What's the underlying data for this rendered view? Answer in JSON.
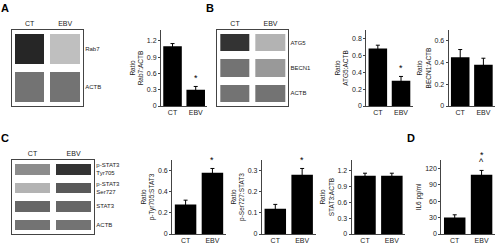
{
  "chart_data": [
    {
      "type": "heatmap",
      "title": "A",
      "x": [
        "CT",
        "EBV"
      ],
      "y": [
        "Rab7",
        "ACTB"
      ],
      "cells": [
        [
          0.85,
          0.25
        ],
        [
          0.55,
          0.55
        ]
      ],
      "zlim": [
        0,
        1
      ],
      "grid": false
    },
    {
      "type": "bar",
      "categories": [
        "CT",
        "EBV"
      ],
      "values": [
        1.1,
        0.3
      ],
      "errors": [
        0.05,
        0.06
      ],
      "ylabel": "Ratio\nRab7:ACTB",
      "ylim": [
        0,
        1.4
      ],
      "yticks": [
        0,
        0.3,
        0.6,
        0.9,
        1.2
      ],
      "color": "#000000",
      "grid": false,
      "annotations": [
        {
          "text": "*",
          "category": "EBV"
        }
      ]
    },
    {
      "type": "heatmap",
      "title": "B",
      "x": [
        "CT",
        "EBV"
      ],
      "y": [
        "ATG5",
        "BECN1",
        "ACTB"
      ],
      "cells": [
        [
          0.8,
          0.3
        ],
        [
          0.55,
          0.4
        ],
        [
          0.55,
          0.55
        ]
      ],
      "zlim": [
        0,
        1
      ],
      "grid": false
    },
    {
      "type": "bar",
      "categories": [
        "CT",
        "EBV"
      ],
      "values": [
        0.68,
        0.3
      ],
      "errors": [
        0.04,
        0.05
      ],
      "ylabel": "Ratio\nATG5:ACTB",
      "ylim": [
        0,
        0.9
      ],
      "yticks": [
        0,
        0.2,
        0.4,
        0.6,
        0.8
      ],
      "color": "#000000",
      "grid": false,
      "annotations": [
        {
          "text": "*",
          "category": "EBV"
        }
      ]
    },
    {
      "type": "bar",
      "categories": [
        "CT",
        "EBV"
      ],
      "values": [
        0.45,
        0.38
      ],
      "errors": [
        0.07,
        0.06
      ],
      "ylabel": "Ratio\nBECN1:ACTB",
      "ylim": [
        0,
        0.7
      ],
      "yticks": [
        0,
        0.2,
        0.4,
        0.6
      ],
      "color": "#000000",
      "grid": false
    },
    {
      "type": "heatmap",
      "title": "C",
      "x": [
        "CT",
        "EBV"
      ],
      "y": [
        "p-STAT3\nTyr705",
        "p-STAT3\nSer727",
        "STAT3",
        "ACTB"
      ],
      "cells": [
        [
          0.45,
          0.8
        ],
        [
          0.3,
          0.65
        ],
        [
          0.6,
          0.6
        ],
        [
          0.55,
          0.55
        ]
      ],
      "zlim": [
        0,
        1
      ],
      "grid": false
    },
    {
      "type": "bar",
      "categories": [
        "CT",
        "EBV"
      ],
      "values": [
        0.28,
        0.58
      ],
      "errors": [
        0.04,
        0.04
      ],
      "ylabel": "Ratio\np-Tyr705:STAT3",
      "ylim": [
        0,
        0.7
      ],
      "yticks": [
        0,
        0.2,
        0.4,
        0.6
      ],
      "color": "#000000",
      "grid": false,
      "annotations": [
        {
          "text": "*",
          "category": "EBV"
        }
      ]
    },
    {
      "type": "bar",
      "categories": [
        "CT",
        "EBV"
      ],
      "values": [
        0.12,
        0.28
      ],
      "errors": [
        0.02,
        0.03
      ],
      "ylabel": "Ratio\np-Ser727:STAT3",
      "ylim": [
        0,
        0.35
      ],
      "yticks": [
        0,
        0.1,
        0.2,
        0.3
      ],
      "color": "#000000",
      "grid": false,
      "annotations": [
        {
          "text": "*",
          "category": "EBV"
        }
      ]
    },
    {
      "type": "bar",
      "categories": [
        "CT",
        "EBV"
      ],
      "values": [
        1.1,
        1.1
      ],
      "errors": [
        0.05,
        0.05
      ],
      "ylabel": "Ratio\nSTAT3:ACTB",
      "ylim": [
        0,
        1.4
      ],
      "yticks": [
        0,
        0.3,
        0.6,
        0.9,
        1.2
      ],
      "color": "#000000",
      "grid": false
    },
    {
      "type": "bar",
      "title": "D",
      "categories": [
        "CT",
        "EBV"
      ],
      "values": [
        30,
        108
      ],
      "errors": [
        5,
        8
      ],
      "ylabel": "IL6 pg/ml",
      "ylim": [
        0,
        135
      ],
      "yticks": [
        0,
        30,
        60,
        90,
        120
      ],
      "color": "#000000",
      "grid": false,
      "annotations": [
        {
          "text": "^",
          "category": "EBV"
        },
        {
          "text": "*",
          "category": "EBV"
        }
      ]
    }
  ]
}
